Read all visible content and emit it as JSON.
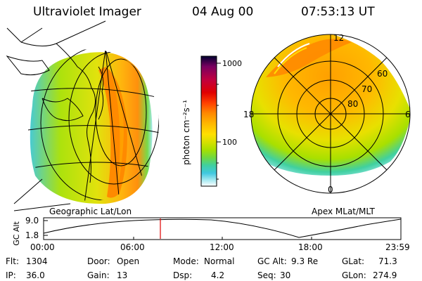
{
  "header": {
    "instrument": "Ultraviolet Imager",
    "date": "04 Aug 00",
    "time": "07:53:13 UT"
  },
  "colorbar": {
    "unit_label": "photon cm⁻²s⁻¹",
    "ticks": [
      "1000",
      "100"
    ],
    "colors": [
      "#000030",
      "#7a0060",
      "#c00040",
      "#e00000",
      "#ff4000",
      "#ff8a00",
      "#ffb800",
      "#ffe000",
      "#d8e000",
      "#a8e000",
      "#70d840",
      "#40d0a0",
      "#40c8e0",
      "#a0e8f0",
      "#ffffff"
    ]
  },
  "geo_panel": {
    "label": "Geographic Lat/Lon"
  },
  "apex_panel": {
    "label": "Apex MLat/MLT",
    "mlt_labels": {
      "top": "12",
      "left": "18",
      "right": "6",
      "bottom": "0"
    },
    "lat_labels": [
      "60",
      "70",
      "80"
    ]
  },
  "timeline": {
    "ylabel": "GC Alt",
    "yticks": [
      "9.0",
      "1.8"
    ],
    "xticks": [
      "00:00",
      "06:00",
      "12:00",
      "18:00",
      "23:59"
    ],
    "marker_time": "07:53:13"
  },
  "info": {
    "flt_label": "Flt:",
    "flt_value": "1304",
    "ip_label": "IP:",
    "ip_value": "36.0",
    "door_label": "Door:",
    "door_value": "Open",
    "gain_label": "Gain:",
    "gain_value": "13",
    "mode_label": "Mode:",
    "mode_value": "Normal",
    "dsp_label": "Dsp:",
    "dsp_value": "4.2",
    "gcalt_label": "GC Alt:",
    "gcalt_value": "9.3 Re",
    "seq_label": "Seq:",
    "seq_value": "30",
    "glat_label": "GLat:",
    "glat_value": "71.3",
    "glon_label": "GLon:",
    "glon_value": "274.9"
  }
}
